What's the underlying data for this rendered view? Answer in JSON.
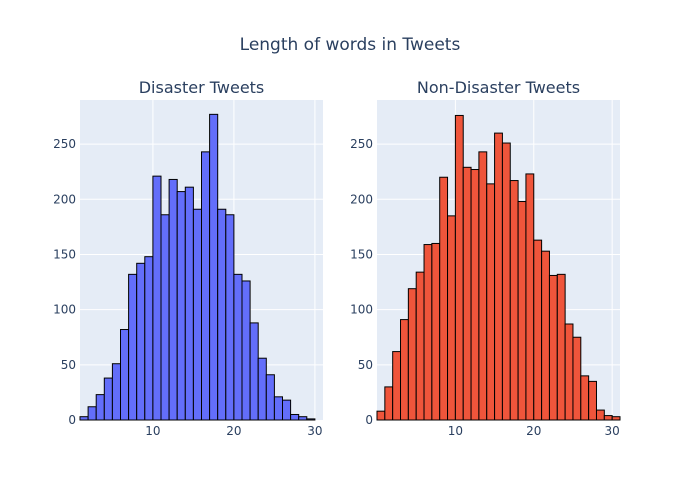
{
  "title": "Length of words in Tweets",
  "colors": {
    "plot_bg": "#e5ecf6",
    "grid": "#ffffff",
    "text": "#2a3f5f",
    "bar_outline": "#000000"
  },
  "chart_data": [
    {
      "type": "bar",
      "title": "Disaster Tweets",
      "color": "#636efa",
      "xlim": [
        1,
        31
      ],
      "ylim": [
        0,
        290
      ],
      "xticks": [
        10,
        20,
        30
      ],
      "yticks": [
        0,
        50,
        100,
        150,
        200,
        250
      ],
      "bin_width": 1,
      "x": [
        1,
        2,
        3,
        4,
        5,
        6,
        7,
        8,
        9,
        10,
        11,
        12,
        13,
        14,
        15,
        16,
        17,
        18,
        19,
        20,
        21,
        22,
        23,
        24,
        25,
        26,
        27,
        28,
        29,
        30
      ],
      "values": [
        3,
        12,
        23,
        38,
        51,
        82,
        132,
        142,
        148,
        221,
        186,
        218,
        207,
        211,
        191,
        243,
        277,
        191,
        186,
        132,
        126,
        88,
        56,
        41,
        21,
        18,
        5,
        3,
        1,
        0
      ],
      "grid": true,
      "xlabel": "",
      "ylabel": ""
    },
    {
      "type": "bar",
      "title": "Non-Disaster Tweets",
      "color": "#ef553b",
      "xlim": [
        0,
        31
      ],
      "ylim": [
        0,
        290
      ],
      "xticks": [
        10,
        20,
        30
      ],
      "yticks": [
        0,
        50,
        100,
        150,
        200,
        250
      ],
      "bin_width": 1,
      "x": [
        0,
        1,
        2,
        3,
        4,
        5,
        6,
        7,
        8,
        9,
        10,
        11,
        12,
        13,
        14,
        15,
        16,
        17,
        18,
        19,
        20,
        21,
        22,
        23,
        24,
        25,
        26,
        27,
        28,
        29,
        30
      ],
      "values": [
        8,
        30,
        62,
        91,
        119,
        134,
        159,
        160,
        220,
        185,
        276,
        229,
        227,
        243,
        214,
        260,
        251,
        217,
        198,
        223,
        163,
        153,
        131,
        132,
        87,
        75,
        40,
        35,
        9,
        4,
        3
      ],
      "grid": true,
      "xlabel": "",
      "ylabel": ""
    }
  ]
}
